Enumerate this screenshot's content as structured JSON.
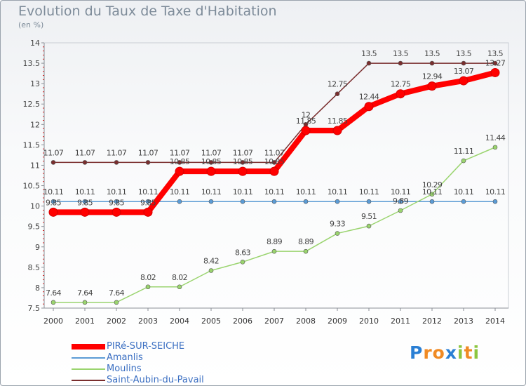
{
  "title": "Evolution du Taux de Taxe d'Habitation",
  "unit_label": "(en %)",
  "chart_data": {
    "type": "line",
    "title": "Evolution du Taux de Taxe d'Habitation",
    "ylabel": "(en %)",
    "xlabel": "",
    "ylim": [
      7.5,
      14
    ],
    "y_ticks": [
      "7.5",
      "8",
      "8.5",
      "9",
      "9.5",
      "10",
      "10.5",
      "11",
      "11.5",
      "12",
      "12.5",
      "13",
      "13.5",
      "14"
    ],
    "x": [
      "2000",
      "2001",
      "2002",
      "2003",
      "2004",
      "2005",
      "2006",
      "2007",
      "2008",
      "2009",
      "2010",
      "2011",
      "2012",
      "2013",
      "2014"
    ],
    "grid": false,
    "legend_position": "bottom-left",
    "series": [
      {
        "name": "Saint-Aubin-du-Pavail",
        "color": "#7a2e2e",
        "width": 1.5,
        "values": [
          11.07,
          11.07,
          11.07,
          11.07,
          11.07,
          11.07,
          11.07,
          11.07,
          12,
          12.75,
          13.5,
          13.5,
          13.5,
          13.5,
          13.5
        ],
        "labels": [
          "11.07",
          "11.07",
          "11.07",
          "11.07",
          "11.07",
          "11.07",
          "11.07",
          "11.07",
          "12",
          "12.75",
          "13.5",
          "13.5",
          "13.5",
          "13.5",
          "13.5"
        ]
      },
      {
        "name": "Amanlis",
        "color": "#5b9bd5",
        "width": 1.5,
        "values": [
          10.11,
          10.11,
          10.11,
          10.11,
          10.11,
          10.11,
          10.11,
          10.11,
          10.11,
          10.11,
          10.11,
          10.11,
          10.11,
          10.11,
          10.11
        ],
        "labels": [
          "10.11",
          "10.11",
          "10.11",
          "10.11",
          "10.11",
          "10.11",
          "10.11",
          "10.11",
          "10.11",
          "10.11",
          "10.11",
          "10.11",
          "10.11",
          "10.11",
          "10.11"
        ]
      },
      {
        "name": "Moulins",
        "color": "#9ad46e",
        "width": 1.5,
        "values": [
          7.64,
          7.64,
          7.64,
          8.02,
          8.02,
          8.42,
          8.63,
          8.89,
          8.89,
          9.33,
          9.51,
          9.89,
          10.29,
          11.11,
          11.44
        ],
        "labels": [
          "7.64",
          "7.64",
          "7.64",
          "8.02",
          "8.02",
          "8.42",
          "8.63",
          "8.89",
          "8.89",
          "9.33",
          "9.51",
          "9.89",
          "10.29",
          "11.11",
          "11.44"
        ]
      },
      {
        "name": "PIRé-SUR-SEICHE",
        "color": "#ff0000",
        "width": 8,
        "values": [
          9.85,
          9.85,
          9.85,
          9.85,
          10.85,
          10.85,
          10.85,
          10.85,
          11.85,
          11.85,
          12.44,
          12.75,
          12.94,
          13.07,
          13.27
        ],
        "labels": [
          "9.85",
          "9.85",
          "9.85",
          "9.85",
          "10.85",
          "10.85",
          "10.85",
          "10.85",
          "11.85",
          "11.85",
          "12.44",
          "12.75",
          "12.94",
          "13.07",
          "13.27"
        ]
      }
    ]
  },
  "legend": [
    {
      "name": "PIRé-SUR-SEICHE",
      "color": "#ff0000",
      "width": 8
    },
    {
      "name": "Amanlis",
      "color": "#5b9bd5",
      "width": 2
    },
    {
      "name": "Moulins",
      "color": "#9ad46e",
      "width": 2
    },
    {
      "name": "Saint-Aubin-du-Pavail",
      "color": "#7a2e2e",
      "width": 2
    }
  ],
  "logo": {
    "text": "Proxiti",
    "letters": [
      {
        "ch": "P",
        "color": "#2a7fd4"
      },
      {
        "ch": "r",
        "color": "#f08a24"
      },
      {
        "ch": "o",
        "color": "#f08a24"
      },
      {
        "ch": "x",
        "color": "#2a7fd4"
      },
      {
        "ch": "i",
        "color": "#8cc63f"
      },
      {
        "ch": "t",
        "color": "#f08a24"
      },
      {
        "ch": "i",
        "color": "#8cc63f"
      }
    ]
  }
}
